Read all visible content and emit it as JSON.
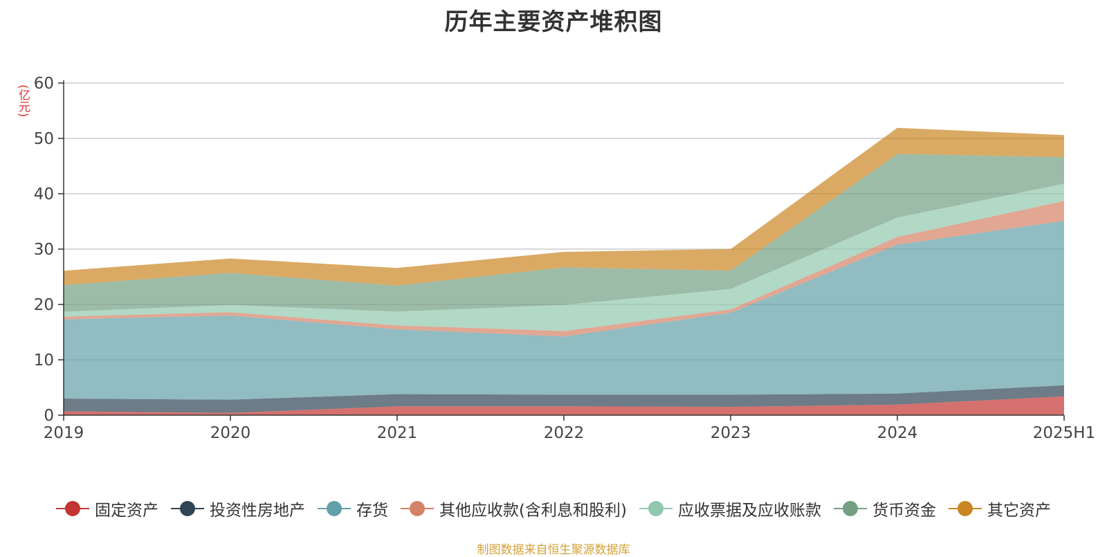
{
  "title": "历年主要资产堆积图",
  "unit_label": "(亿元)",
  "source_text": "制图数据来自恒生聚源数据库",
  "chart_data": {
    "type": "area",
    "stacked": true,
    "x": [
      "2019",
      "2020",
      "2021",
      "2022",
      "2023",
      "2024",
      "2025H1"
    ],
    "ylim": [
      0,
      60
    ],
    "yticks": [
      0,
      10,
      20,
      30,
      40,
      50,
      60
    ],
    "grid": true,
    "legend_position": "bottom",
    "series": [
      {
        "name": "固定资产",
        "color": "#c23531",
        "values": [
          0.7,
          0.4,
          1.6,
          1.6,
          1.5,
          1.9,
          3.4
        ]
      },
      {
        "name": "投资性房地产",
        "color": "#2f4554",
        "values": [
          2.3,
          2.4,
          2.2,
          2.1,
          2.2,
          2.0,
          2.0
        ]
      },
      {
        "name": "存货",
        "color": "#61a0a8",
        "values": [
          14.3,
          15.2,
          11.7,
          10.5,
          14.8,
          26.9,
          29.7
        ]
      },
      {
        "name": "其他应收款(含利息和股利)",
        "color": "#d48265",
        "values": [
          0.5,
          0.6,
          0.7,
          1.0,
          0.6,
          1.4,
          3.6
        ]
      },
      {
        "name": "应收票据及应收账款",
        "color": "#91c7ae",
        "values": [
          0.9,
          1.3,
          2.5,
          4.7,
          3.7,
          3.5,
          3.1
        ]
      },
      {
        "name": "货币资金",
        "color": "#749f83",
        "values": [
          4.8,
          5.8,
          4.7,
          6.8,
          3.3,
          11.5,
          4.8
        ]
      },
      {
        "name": "其它资产",
        "color": "#ca8622",
        "values": [
          2.6,
          2.6,
          3.2,
          2.8,
          3.9,
          4.7,
          4.0
        ]
      }
    ]
  }
}
